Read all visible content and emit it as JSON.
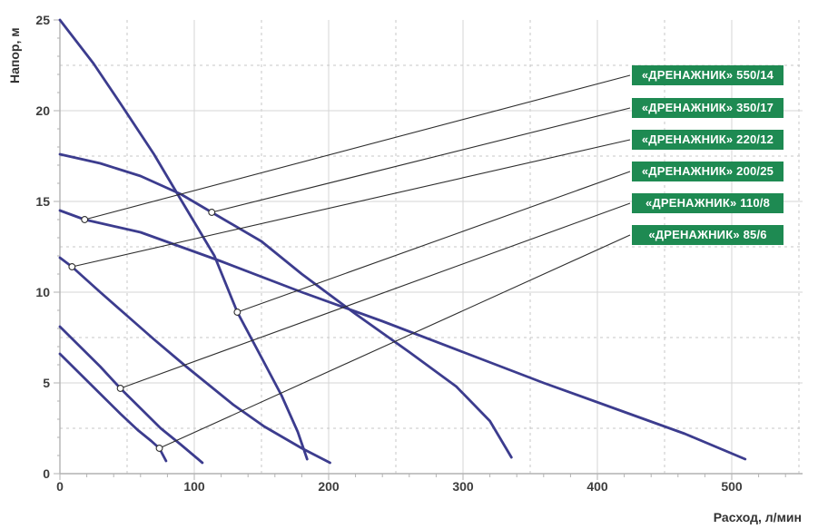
{
  "chart_data": {
    "type": "line",
    "title": "",
    "xlabel": "Расход, л/мин",
    "ylabel": "Напор, м",
    "xlim": [
      0,
      555
    ],
    "ylim": [
      0,
      25
    ],
    "x_ticks": [
      0,
      100,
      200,
      300,
      400,
      500
    ],
    "y_ticks": [
      0,
      5,
      10,
      15,
      20,
      25
    ],
    "x_minor_step": 20,
    "y_minor_step": 1,
    "grid": {
      "solid_x": [
        100,
        200,
        300,
        400,
        500
      ],
      "dashed_x": [
        50,
        150,
        250,
        350,
        450,
        550
      ],
      "solid_y": [
        5,
        10,
        15,
        20
      ],
      "dashed_y": [
        2.5,
        7.5,
        12.5,
        17.5,
        22.5
      ]
    },
    "legend_position": "top-right",
    "series": [
      {
        "label": "«ДРЕНАЖНИК» 550/14",
        "marker": [
          18.4,
          14.0
        ],
        "points": [
          [
            0,
            14.5
          ],
          [
            18.4,
            14.0
          ],
          [
            60,
            13.3
          ],
          [
            120,
            11.7
          ],
          [
            180,
            10.0
          ],
          [
            240,
            8.4
          ],
          [
            300,
            6.7
          ],
          [
            360,
            5.0
          ],
          [
            420,
            3.4
          ],
          [
            465,
            2.2
          ],
          [
            510,
            0.8
          ]
        ]
      },
      {
        "label": "«ДРЕНАЖНИК» 350/17",
        "marker": [
          113,
          14.4
        ],
        "points": [
          [
            0,
            17.6
          ],
          [
            30,
            17.1
          ],
          [
            60,
            16.4
          ],
          [
            90,
            15.4
          ],
          [
            113,
            14.4
          ],
          [
            150,
            12.8
          ],
          [
            180,
            11.0
          ],
          [
            220,
            8.8
          ],
          [
            260,
            6.7
          ],
          [
            295,
            4.8
          ],
          [
            320,
            2.9
          ],
          [
            336,
            0.9
          ]
        ]
      },
      {
        "label": "«ДРЕНАЖНИК» 220/12",
        "marker": [
          9,
          11.4
        ],
        "points": [
          [
            0,
            11.9
          ],
          [
            9,
            11.4
          ],
          [
            30,
            10.0
          ],
          [
            50,
            8.7
          ],
          [
            70,
            7.4
          ],
          [
            94,
            5.9
          ],
          [
            129,
            3.8
          ],
          [
            152,
            2.6
          ],
          [
            180,
            1.4
          ],
          [
            201,
            0.6
          ]
        ]
      },
      {
        "label": "«ДРЕНАЖНИК» 200/25",
        "marker": [
          132,
          8.9
        ],
        "points": [
          [
            0,
            25.0
          ],
          [
            25,
            22.6
          ],
          [
            45,
            20.4
          ],
          [
            70,
            17.6
          ],
          [
            90,
            15.1
          ],
          [
            115,
            12.0
          ],
          [
            132,
            8.9
          ],
          [
            150,
            6.4
          ],
          [
            165,
            4.3
          ],
          [
            177,
            2.3
          ],
          [
            184,
            0.8
          ]
        ]
      },
      {
        "label": "«ДРЕНАЖНИК» 110/8",
        "marker": [
          45,
          4.7
        ],
        "points": [
          [
            0,
            8.1
          ],
          [
            15,
            7.0
          ],
          [
            30,
            5.9
          ],
          [
            45,
            4.7
          ],
          [
            60,
            3.6
          ],
          [
            75,
            2.5
          ],
          [
            90,
            1.6
          ],
          [
            106,
            0.6
          ]
        ]
      },
      {
        "label": "«ДРЕНАЖНИК» 85/6",
        "marker": [
          74,
          1.4
        ],
        "points": [
          [
            0,
            6.6
          ],
          [
            15,
            5.5
          ],
          [
            30,
            4.4
          ],
          [
            45,
            3.3
          ],
          [
            58,
            2.4
          ],
          [
            68,
            1.8
          ],
          [
            74,
            1.4
          ],
          [
            79,
            0.7
          ]
        ]
      }
    ],
    "colors": {
      "curve": "#3c3c8e",
      "badge_bg": "#1e8a52",
      "badge_text": "#ffffff",
      "leader": "#2e2e2e",
      "marker_fill": "#ffffff"
    }
  }
}
